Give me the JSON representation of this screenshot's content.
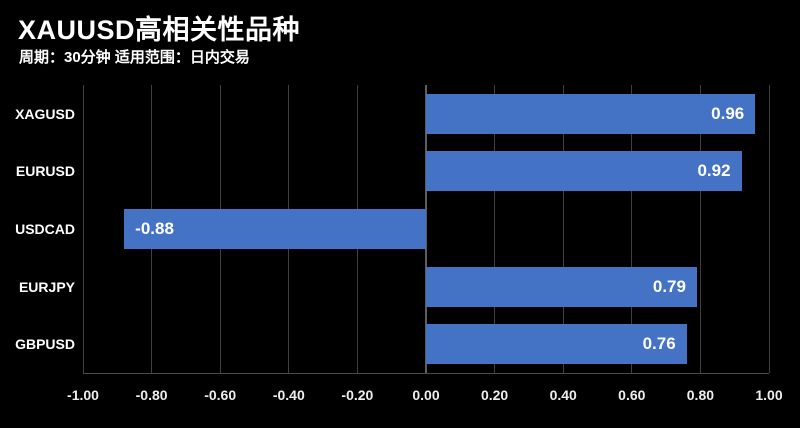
{
  "header": {
    "title": "XAUUSD高相关性品种",
    "subtitle": "周期：30分钟 适用范围：日内交易"
  },
  "chart_data": {
    "type": "bar",
    "orientation": "horizontal",
    "title": "XAUUSD高相关性品种",
    "subtitle": "周期：30分钟 适用范围：日内交易",
    "categories": [
      "XAGUSD",
      "EURUSD",
      "USDCAD",
      "EURJPY",
      "GBPUSD"
    ],
    "values": [
      0.96,
      0.92,
      -0.88,
      0.79,
      0.76
    ],
    "value_labels": [
      "0.96",
      "0.92",
      "-0.88",
      "0.79",
      "0.76"
    ],
    "xlim": [
      -1.0,
      1.0
    ],
    "tick_step": 0.2,
    "tick_labels": [
      "-1.00",
      "-0.80",
      "-0.60",
      "-0.40",
      "-0.20",
      "0.00",
      "0.20",
      "0.40",
      "0.60",
      "0.80",
      "1.00"
    ],
    "xlabel": "",
    "ylabel": "",
    "grid": true,
    "legend": false,
    "colors": {
      "background": "#000000",
      "bar": "#4472C4",
      "gridline": "#3f3f3f",
      "zero_axis": "#5d5d5d",
      "text": "#ffffff"
    }
  }
}
